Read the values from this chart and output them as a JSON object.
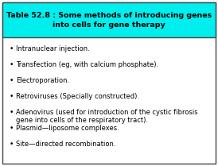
{
  "title_line1": "Table 52.8 : Some methods of introducing genes",
  "title_line2": "into cells for gene therapy",
  "title_bg_color": "#00EEEE",
  "title_text_color": "#000000",
  "body_bg_color": "#FFFFFF",
  "border_color": "#444444",
  "bullet_items": [
    "Intranuclear injection.",
    "Transfection (eg, with calcium phosphate).",
    "Electroporation.",
    "Retroviruses (Specially constructed).",
    "Adenovirus (used for introduction of the cystic fibrosis\ngene into cells of the respiratory tract).",
    "Plasmid—liposome complexes.",
    "Site—directed recombination."
  ],
  "title_fontsize": 6.8,
  "body_fontsize": 6.0,
  "figsize": [
    2.74,
    2.09
  ],
  "dpi": 100
}
